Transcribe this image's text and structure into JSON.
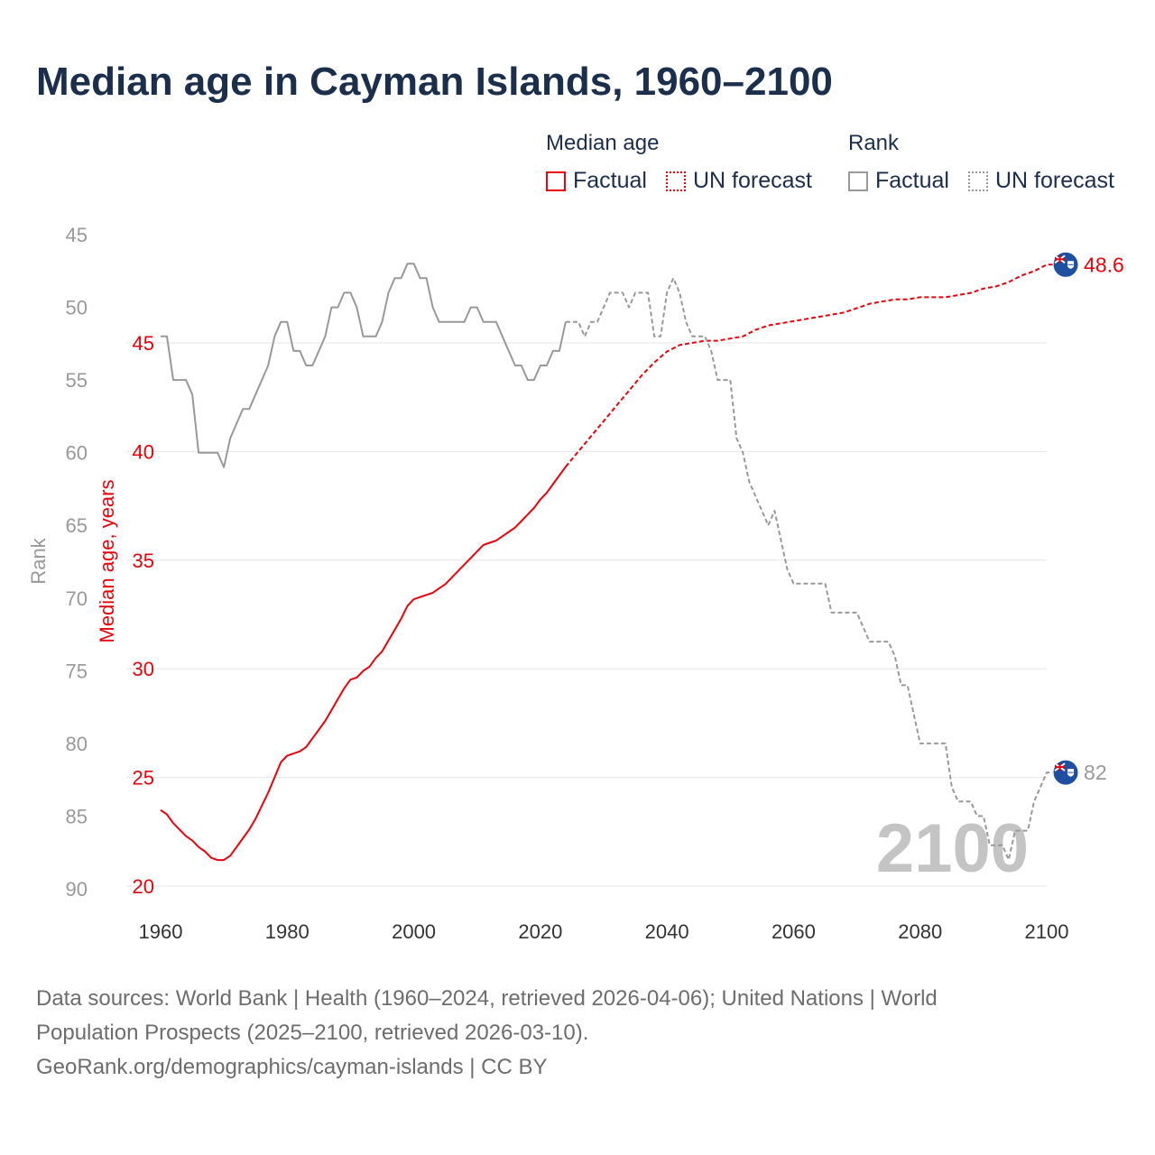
{
  "title": "Median age in Cayman Islands, 1960–2100",
  "legend": {
    "groups": [
      {
        "heading": "Median age",
        "items": [
          {
            "label": "Factual",
            "style": "solid"
          },
          {
            "label": "UN forecast",
            "style": "dotted"
          }
        ],
        "color": "#e8000b"
      },
      {
        "heading": "Rank",
        "items": [
          {
            "label": "Factual",
            "style": "solid"
          },
          {
            "label": "UN forecast",
            "style": "dotted"
          }
        ],
        "color": "#999999"
      }
    ]
  },
  "chart_data": {
    "type": "line",
    "xlim": [
      1960,
      2100
    ],
    "x_ticks": [
      1960,
      1980,
      2000,
      2020,
      2040,
      2060,
      2080,
      2100
    ],
    "left_axis": {
      "label": "Rank",
      "ticks": [
        45,
        50,
        55,
        60,
        65,
        70,
        75,
        80,
        85,
        90
      ],
      "range": [
        45,
        90
      ],
      "inverted": true,
      "color": "#999999"
    },
    "right_axis": {
      "label": "Median age, years",
      "ticks": [
        20,
        25,
        30,
        35,
        40,
        45
      ],
      "range": [
        20,
        45
      ],
      "color": "#e8000b"
    },
    "grid": true,
    "year_watermark": "2100",
    "end_labels": {
      "median_age": "48.6",
      "rank": "82"
    },
    "series": [
      {
        "name": "Median age",
        "color": "#e8000b",
        "factual": {
          "years": [
            1960,
            1961,
            1962,
            1963,
            1964,
            1965,
            1966,
            1967,
            1968,
            1969,
            1970,
            1971,
            1972,
            1973,
            1974,
            1975,
            1976,
            1977,
            1978,
            1979,
            1980,
            1981,
            1982,
            1983,
            1984,
            1985,
            1986,
            1987,
            1988,
            1989,
            1990,
            1991,
            1992,
            1993,
            1994,
            1995,
            1996,
            1997,
            1998,
            1999,
            2000,
            2001,
            2002,
            2003,
            2004,
            2005,
            2006,
            2007,
            2008,
            2009,
            2010,
            2011,
            2012,
            2013,
            2014,
            2015,
            2016,
            2017,
            2018,
            2019,
            2020,
            2021,
            2022,
            2023,
            2024
          ],
          "values": [
            23.5,
            23.3,
            22.9,
            22.6,
            22.3,
            22.1,
            21.8,
            21.6,
            21.3,
            21.2,
            21.2,
            21.4,
            21.8,
            22.2,
            22.6,
            23.1,
            23.7,
            24.3,
            25.0,
            25.7,
            26.0,
            26.1,
            26.2,
            26.4,
            26.8,
            27.2,
            27.6,
            28.1,
            28.6,
            29.1,
            29.5,
            29.6,
            29.9,
            30.1,
            30.5,
            30.8,
            31.3,
            31.8,
            32.3,
            32.9,
            33.2,
            33.3,
            33.4,
            33.5,
            33.7,
            33.9,
            34.2,
            34.5,
            34.8,
            35.1,
            35.4,
            35.7,
            35.8,
            35.9,
            36.1,
            36.3,
            36.5,
            36.8,
            37.1,
            37.4,
            37.8,
            38.1,
            38.5,
            38.9,
            39.3
          ]
        },
        "forecast": {
          "years": [
            2024,
            2026,
            2028,
            2030,
            2032,
            2034,
            2036,
            2038,
            2040,
            2042,
            2044,
            2046,
            2048,
            2050,
            2052,
            2054,
            2056,
            2058,
            2060,
            2062,
            2064,
            2066,
            2068,
            2070,
            2072,
            2074,
            2076,
            2078,
            2080,
            2082,
            2084,
            2086,
            2088,
            2090,
            2092,
            2094,
            2096,
            2098,
            2100,
            2103
          ],
          "values": [
            39.3,
            40.0,
            40.7,
            41.4,
            42.1,
            42.8,
            43.5,
            44.1,
            44.6,
            44.9,
            45.0,
            45.1,
            45.1,
            45.2,
            45.3,
            45.6,
            45.8,
            45.9,
            46.0,
            46.1,
            46.2,
            46.3,
            46.4,
            46.6,
            46.8,
            46.9,
            47.0,
            47.0,
            47.1,
            47.1,
            47.1,
            47.2,
            47.3,
            47.5,
            47.6,
            47.8,
            48.1,
            48.3,
            48.6,
            48.6
          ]
        }
      },
      {
        "name": "Rank",
        "color": "#999999",
        "factual": {
          "years": [
            1960,
            1961,
            1962,
            1963,
            1964,
            1965,
            1966,
            1967,
            1968,
            1969,
            1970,
            1971,
            1972,
            1973,
            1974,
            1975,
            1976,
            1977,
            1978,
            1979,
            1980,
            1981,
            1982,
            1983,
            1984,
            1985,
            1986,
            1987,
            1988,
            1989,
            1990,
            1991,
            1992,
            1993,
            1994,
            1995,
            1996,
            1997,
            1998,
            1999,
            2000,
            2001,
            2002,
            2003,
            2004,
            2005,
            2006,
            2007,
            2008,
            2009,
            2010,
            2011,
            2012,
            2013,
            2014,
            2015,
            2016,
            2017,
            2018,
            2019,
            2020,
            2021,
            2022,
            2023,
            2024
          ],
          "values": [
            52,
            52,
            55,
            55,
            55,
            56,
            60,
            60,
            60,
            60,
            61,
            59,
            58,
            57,
            57,
            56,
            55,
            54,
            52,
            51,
            51,
            53,
            53,
            54,
            54,
            53,
            52,
            50,
            50,
            49,
            49,
            50,
            52,
            52,
            52,
            51,
            49,
            48,
            48,
            47,
            47,
            48,
            48,
            50,
            51,
            51,
            51,
            51,
            51,
            50,
            50,
            51,
            51,
            51,
            52,
            53,
            54,
            54,
            55,
            55,
            54,
            54,
            53,
            53,
            51
          ]
        },
        "forecast": {
          "years": [
            2024,
            2025,
            2026,
            2027,
            2028,
            2029,
            2030,
            2031,
            2032,
            2033,
            2034,
            2035,
            2036,
            2037,
            2038,
            2039,
            2040,
            2041,
            2042,
            2043,
            2044,
            2045,
            2046,
            2047,
            2048,
            2049,
            2050,
            2051,
            2052,
            2053,
            2054,
            2055,
            2056,
            2057,
            2058,
            2059,
            2060,
            2061,
            2062,
            2063,
            2064,
            2065,
            2066,
            2067,
            2068,
            2069,
            2070,
            2071,
            2072,
            2073,
            2074,
            2075,
            2076,
            2077,
            2078,
            2079,
            2080,
            2081,
            2082,
            2083,
            2084,
            2085,
            2086,
            2087,
            2088,
            2089,
            2090,
            2091,
            2092,
            2093,
            2094,
            2095,
            2096,
            2097,
            2098,
            2099,
            2100,
            2103
          ],
          "values": [
            51,
            51,
            51,
            52,
            51,
            51,
            50,
            49,
            49,
            49,
            50,
            49,
            49,
            49,
            52,
            52,
            49,
            48,
            49,
            51,
            52,
            52,
            52,
            53,
            55,
            55,
            55,
            59,
            60,
            62,
            63,
            64,
            65,
            64,
            66,
            68,
            69,
            69,
            69,
            69,
            69,
            69,
            71,
            71,
            71,
            71,
            71,
            72,
            73,
            73,
            73,
            73,
            74,
            76,
            76,
            78,
            80,
            80,
            80,
            80,
            80,
            83,
            84,
            84,
            84,
            85,
            85,
            87,
            87,
            87,
            88,
            86,
            86,
            86,
            84,
            83,
            82,
            82
          ]
        }
      }
    ]
  },
  "footer": {
    "line1": "Data sources: World Bank | Health (1960–2024, retrieved 2026-04-06); United Nations | World",
    "line2": "Population Prospects (2025–2100, retrieved 2026-03-10).",
    "line3": "GeoRank.org/demographics/cayman-islands | CC BY"
  }
}
